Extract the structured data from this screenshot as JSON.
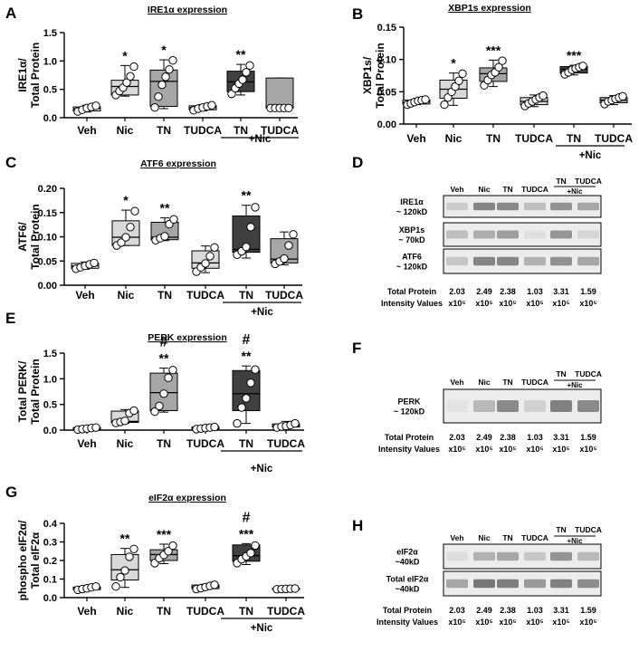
{
  "colors": {
    "veh": "#ffffff",
    "nic": "#d9d9d9",
    "tn": "#a6a6a6",
    "tudca": "#d9d9d9",
    "tn_nic": "#404040",
    "tudca_nic": "#a6a6a6",
    "axis": "#000000",
    "blot_background": "#ececec",
    "blot_band": "#6d6d6d"
  },
  "plus_nic_label": "+Nic",
  "chart_data": [
    {
      "panel": "A",
      "type": "box",
      "title": "IRE1α expression",
      "ylabel": [
        "IRE1α/",
        "Total Protein"
      ],
      "ylim": [
        0,
        1.5
      ],
      "yticks": [
        0,
        0.5,
        1.0,
        1.5
      ],
      "ytick_labels": [
        "0.0",
        "0.5",
        "1.0",
        "1.5"
      ],
      "categories": [
        "Veh",
        "Nic",
        "TN",
        "TUDCA",
        "TN",
        "TUDCA"
      ],
      "group_label": "+Nic",
      "group_start": 4,
      "boxes": [
        {
          "min": 0.1,
          "q1": 0.12,
          "median": 0.16,
          "q3": 0.19,
          "max": 0.22,
          "points": [
            0.11,
            0.14,
            0.17,
            0.19,
            0.21
          ],
          "sig": "",
          "hash": ""
        },
        {
          "min": 0.38,
          "q1": 0.4,
          "median": 0.55,
          "q3": 0.66,
          "max": 0.92,
          "points": [
            0.4,
            0.47,
            0.53,
            0.62,
            0.73,
            0.9
          ],
          "sig": "*",
          "hash": ""
        },
        {
          "min": 0.16,
          "q1": 0.2,
          "median": 0.64,
          "q3": 0.84,
          "max": 1.02,
          "points": [
            0.18,
            0.37,
            0.58,
            0.72,
            0.85,
            1.01
          ],
          "sig": "*",
          "hash": ""
        },
        {
          "min": 0.12,
          "q1": 0.14,
          "median": 0.18,
          "q3": 0.21,
          "max": 0.23,
          "points": [
            0.13,
            0.16,
            0.18,
            0.2,
            0.22
          ],
          "sig": "",
          "hash": ""
        },
        {
          "min": 0.4,
          "q1": 0.46,
          "median": 0.63,
          "q3": 0.82,
          "max": 0.94,
          "points": [
            0.42,
            0.52,
            0.6,
            0.67,
            0.8,
            0.92
          ],
          "sig": "**",
          "hash": ""
        },
        {
          "min": 0.17,
          "q1": 0.17,
          "median": 0.17,
          "q3": 0.7,
          "max": 0.7,
          "points": [
            0.17,
            0.17,
            0.17,
            0.17,
            0.17
          ],
          "sig": "",
          "hash": ""
        }
      ]
    },
    {
      "panel": "B",
      "type": "box",
      "title": "XBP1s expression",
      "ylabel": [
        "XBP1s/",
        "Total Protein"
      ],
      "ylim": [
        0,
        0.15
      ],
      "yticks": [
        0,
        0.05,
        0.1,
        0.15
      ],
      "ytick_labels": [
        "0.00",
        "0.05",
        "0.10",
        "0.15"
      ],
      "categories": [
        "Veh",
        "Nic",
        "TN",
        "TUDCA",
        "TN",
        "TUDCA"
      ],
      "group_label": "+Nic",
      "group_start": 4,
      "boxes": [
        {
          "min": 0.03,
          "q1": 0.031,
          "median": 0.034,
          "q3": 0.037,
          "max": 0.038,
          "points": [
            0.03,
            0.032,
            0.034,
            0.036,
            0.037,
            0.038
          ],
          "sig": "",
          "hash": ""
        },
        {
          "min": 0.029,
          "q1": 0.04,
          "median": 0.054,
          "q3": 0.068,
          "max": 0.079,
          "points": [
            0.03,
            0.041,
            0.05,
            0.058,
            0.067,
            0.078
          ],
          "sig": "*",
          "hash": ""
        },
        {
          "min": 0.058,
          "q1": 0.066,
          "median": 0.078,
          "q3": 0.087,
          "max": 0.099,
          "points": [
            0.06,
            0.068,
            0.076,
            0.08,
            0.088,
            0.098
          ],
          "sig": "***",
          "hash": ""
        },
        {
          "min": 0.027,
          "q1": 0.03,
          "median": 0.035,
          "q3": 0.041,
          "max": 0.045,
          "points": [
            0.028,
            0.032,
            0.035,
            0.038,
            0.041,
            0.044
          ],
          "sig": "",
          "hash": ""
        },
        {
          "min": 0.076,
          "q1": 0.079,
          "median": 0.085,
          "q3": 0.089,
          "max": 0.091,
          "points": [
            0.077,
            0.08,
            0.084,
            0.086,
            0.088,
            0.09
          ],
          "sig": "***",
          "hash": ""
        },
        {
          "min": 0.03,
          "q1": 0.033,
          "median": 0.037,
          "q3": 0.041,
          "max": 0.044,
          "points": [
            0.031,
            0.035,
            0.037,
            0.039,
            0.041,
            0.043
          ],
          "sig": "",
          "hash": ""
        }
      ]
    },
    {
      "panel": "C",
      "type": "box",
      "title": "ATF6 expression",
      "ylabel": [
        "ATF6/",
        "Total Protein"
      ],
      "ylim": [
        0,
        0.2
      ],
      "yticks": [
        0,
        0.05,
        0.1,
        0.15,
        0.2
      ],
      "ytick_labels": [
        "0.00",
        "0.05",
        "0.10",
        "0.15",
        "0.20"
      ],
      "categories": [
        "Veh",
        "Nic",
        "TN",
        "TUDCA",
        "TN",
        "TUDCA"
      ],
      "group_label": "+Nic",
      "group_start": 4,
      "boxes": [
        {
          "min": 0.033,
          "q1": 0.035,
          "median": 0.04,
          "q3": 0.045,
          "max": 0.048,
          "points": [
            0.034,
            0.037,
            0.04,
            0.043,
            0.046
          ],
          "sig": "",
          "hash": ""
        },
        {
          "min": 0.082,
          "q1": 0.082,
          "median": 0.099,
          "q3": 0.133,
          "max": 0.155,
          "points": [
            0.082,
            0.088,
            0.099,
            0.12,
            0.153
          ],
          "sig": "*",
          "hash": ""
        },
        {
          "min": 0.092,
          "q1": 0.094,
          "median": 0.099,
          "q3": 0.13,
          "max": 0.139,
          "points": [
            0.093,
            0.097,
            0.101,
            0.126,
            0.136
          ],
          "sig": "**",
          "hash": ""
        },
        {
          "min": 0.026,
          "q1": 0.035,
          "median": 0.046,
          "q3": 0.071,
          "max": 0.081,
          "points": [
            0.028,
            0.037,
            0.045,
            0.06,
            0.078
          ],
          "sig": "",
          "hash": ""
        },
        {
          "min": 0.056,
          "q1": 0.068,
          "median": 0.074,
          "q3": 0.143,
          "max": 0.165,
          "points": [
            0.063,
            0.07,
            0.079,
            0.12,
            0.161
          ],
          "sig": "**",
          "hash": ""
        },
        {
          "min": 0.042,
          "q1": 0.046,
          "median": 0.054,
          "q3": 0.096,
          "max": 0.11,
          "points": [
            0.044,
            0.049,
            0.055,
            0.082,
            0.105
          ],
          "sig": "",
          "hash": ""
        }
      ]
    },
    {
      "panel": "E",
      "type": "box",
      "title": "PERK expression",
      "ylabel": [
        "Total PERK/",
        "Total Protein"
      ],
      "ylim": [
        0,
        1.5
      ],
      "yticks": [
        0,
        0.5,
        1.0,
        1.5
      ],
      "ytick_labels": [
        "0.0",
        "0.5",
        "1.0",
        "1.5"
      ],
      "categories": [
        "Veh",
        "Nic",
        "TN",
        "TUDCA",
        "TN",
        "TUDCA"
      ],
      "group_label": "+Nic",
      "group_start": 4,
      "boxes": [
        {
          "min": 0.0,
          "q1": 0.01,
          "median": 0.03,
          "q3": 0.05,
          "max": 0.06,
          "points": [
            0.01,
            0.02,
            0.03,
            0.04,
            0.05
          ],
          "sig": "",
          "hash": ""
        },
        {
          "min": 0.13,
          "q1": 0.15,
          "median": 0.17,
          "q3": 0.37,
          "max": 0.4,
          "points": [
            0.14,
            0.16,
            0.18,
            0.33,
            0.38
          ],
          "sig": "",
          "hash": ""
        },
        {
          "min": 0.35,
          "q1": 0.38,
          "median": 0.73,
          "q3": 1.11,
          "max": 1.21,
          "points": [
            0.36,
            0.47,
            0.71,
            1.02,
            1.17
          ],
          "sig": "**",
          "hash": "#"
        },
        {
          "min": 0.01,
          "q1": 0.02,
          "median": 0.04,
          "q3": 0.06,
          "max": 0.07,
          "points": [
            0.02,
            0.03,
            0.04,
            0.05,
            0.06
          ],
          "sig": "",
          "hash": ""
        },
        {
          "min": 0.13,
          "q1": 0.38,
          "median": 0.71,
          "q3": 1.16,
          "max": 1.25,
          "points": [
            0.13,
            0.44,
            0.62,
            0.92,
            1.18
          ],
          "sig": "**",
          "hash": "#"
        },
        {
          "min": 0.04,
          "q1": 0.06,
          "median": 0.08,
          "q3": 0.12,
          "max": 0.17,
          "points": [
            0.05,
            0.07,
            0.08,
            0.1,
            0.13
          ],
          "sig": "",
          "hash": ""
        }
      ]
    },
    {
      "panel": "G",
      "type": "box",
      "title": "eIF2α expression",
      "ylabel": [
        "phospho eIF2α/",
        "Total eIF2α"
      ],
      "ylim": [
        0,
        0.4
      ],
      "yticks": [
        0,
        0.1,
        0.2,
        0.3,
        0.4
      ],
      "ytick_labels": [
        "0.0",
        "0.1",
        "0.2",
        "0.3",
        "0.4"
      ],
      "categories": [
        "Veh",
        "Nic",
        "TN",
        "TUDCA",
        "TN",
        "TUDCA"
      ],
      "group_label": "+Nic",
      "group_start": 4,
      "boxes": [
        {
          "min": 0.04,
          "q1": 0.043,
          "median": 0.05,
          "q3": 0.057,
          "max": 0.062,
          "points": [
            0.042,
            0.046,
            0.05,
            0.055,
            0.06
          ],
          "sig": "",
          "hash": ""
        },
        {
          "min": 0.055,
          "q1": 0.095,
          "median": 0.15,
          "q3": 0.232,
          "max": 0.265,
          "points": [
            0.06,
            0.11,
            0.146,
            0.22,
            0.262
          ],
          "sig": "**",
          "hash": ""
        },
        {
          "min": 0.183,
          "q1": 0.2,
          "median": 0.232,
          "q3": 0.258,
          "max": 0.288,
          "points": [
            0.186,
            0.212,
            0.23,
            0.25,
            0.28
          ],
          "sig": "***",
          "hash": ""
        },
        {
          "min": 0.045,
          "q1": 0.048,
          "median": 0.057,
          "q3": 0.068,
          "max": 0.072,
          "points": [
            0.046,
            0.051,
            0.057,
            0.063,
            0.069
          ],
          "sig": "",
          "hash": ""
        },
        {
          "min": 0.178,
          "q1": 0.196,
          "median": 0.226,
          "q3": 0.284,
          "max": 0.291,
          "points": [
            0.186,
            0.207,
            0.222,
            0.24,
            0.281
          ],
          "sig": "***",
          "hash": "#"
        },
        {
          "min": 0.044,
          "q1": 0.044,
          "median": 0.048,
          "q3": 0.05,
          "max": 0.05,
          "points": [
            0.045,
            0.046,
            0.047,
            0.048,
            0.049
          ],
          "sig": "",
          "hash": ""
        }
      ]
    }
  ],
  "blots": [
    {
      "panel": "D",
      "lanes": [
        "Veh",
        "Nic",
        "TN",
        "TUDCA",
        "TN",
        "TUDCA"
      ],
      "plus_nic": "+Nic",
      "rows": [
        {
          "label1": "IRE1α",
          "label2": "~ 120kD",
          "intensities": [
            0.25,
            0.8,
            0.78,
            0.35,
            0.72,
            0.55
          ]
        },
        {
          "label1": "XBP1s",
          "label2": "~ 70kD",
          "intensities": [
            0.35,
            0.5,
            0.62,
            0.1,
            0.68,
            0.18
          ]
        },
        {
          "label1": "ATF6",
          "label2": "~ 120kD",
          "intensities": [
            0.3,
            0.82,
            0.8,
            0.45,
            0.72,
            0.55
          ]
        }
      ],
      "tp_label1": "Total Protein",
      "tp_label2": "Intensity Values",
      "tp_values": [
        "2.03",
        "2.49",
        "2.38",
        "1.03",
        "3.31",
        "1.59"
      ],
      "tp_exp": "x10⁵"
    },
    {
      "panel": "F",
      "lanes": [
        "Veh",
        "Nic",
        "TN",
        "TUDCA",
        "TN",
        "TUDCA"
      ],
      "plus_nic": "+Nic",
      "rows": [
        {
          "label1": "PERK",
          "label2": "~ 120kD",
          "intensities": [
            0.08,
            0.4,
            0.78,
            0.22,
            0.85,
            0.78
          ]
        }
      ],
      "tp_label1": "Total Protein",
      "tp_label2": "Intensity Values",
      "tp_values": [
        "2.03",
        "2.49",
        "2.38",
        "1.03",
        "3.31",
        "1.59"
      ],
      "tp_exp": "x10⁵"
    },
    {
      "panel": "H",
      "lanes": [
        "Veh",
        "Nic",
        "TN",
        "TUDCA",
        "TN",
        "TUDCA"
      ],
      "plus_nic": "+Nic",
      "rows": [
        {
          "label1": "eIF2α",
          "label2": "~40kD",
          "intensities": [
            0.12,
            0.45,
            0.55,
            0.3,
            0.7,
            0.4
          ]
        },
        {
          "label1": "Total eIF2α",
          "label2": "~40kD",
          "intensities": [
            0.55,
            0.92,
            0.88,
            0.65,
            0.85,
            0.75
          ]
        }
      ],
      "tp_label1": "Total Protein",
      "tp_label2": "Intensity Values",
      "tp_values": [
        "2.03",
        "2.49",
        "2.38",
        "1.03",
        "3.31",
        "1.59"
      ],
      "tp_exp": "x10⁵"
    }
  ]
}
